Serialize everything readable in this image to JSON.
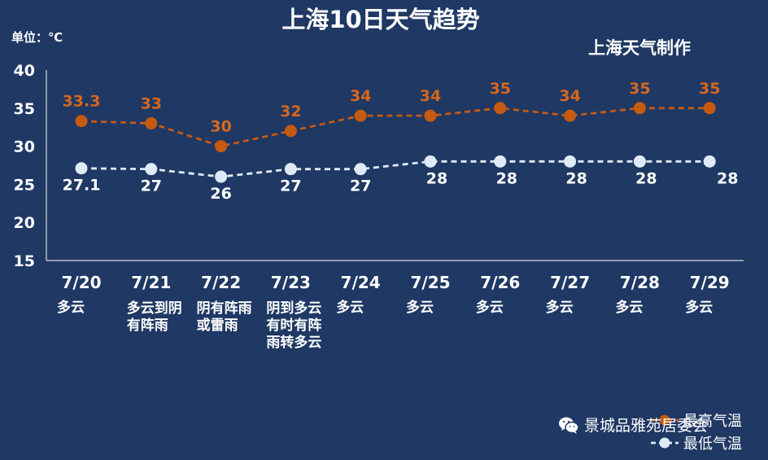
{
  "chart_data": {
    "type": "line",
    "title": "上海10日天气趋势",
    "unit_label": "单位：℃",
    "source_label": "上海天气制作",
    "categories": [
      "7/20",
      "7/21",
      "7/22",
      "7/23",
      "7/24",
      "7/25",
      "7/26",
      "7/27",
      "7/28",
      "7/29"
    ],
    "weather": [
      "多云",
      "多云到阴\n有阵雨",
      "阴有阵雨\n或雷雨",
      "阴到多云\n有时有阵\n雨转多云",
      "多云",
      "多云",
      "多云",
      "多云",
      "多云",
      "多云"
    ],
    "series": [
      {
        "name": "最高气温",
        "color": "#c55a11",
        "label_color": "#d8671c",
        "values": [
          33.3,
          33,
          30,
          32,
          34,
          34,
          35,
          34,
          35,
          35
        ],
        "labels": [
          "33.3",
          "33",
          "30",
          "32",
          "34",
          "34",
          "35",
          "34",
          "35",
          "35"
        ]
      },
      {
        "name": "最低气温",
        "color": "#deebf7",
        "label_color": "#ffffff",
        "values": [
          27.1,
          27,
          26,
          27,
          27,
          28,
          28,
          28,
          28,
          28
        ],
        "labels": [
          "27.1",
          "27",
          "26",
          "27",
          "27",
          "28",
          "28",
          "28",
          "28",
          "28"
        ]
      }
    ],
    "yticks": [
      40,
      35,
      30,
      25,
      20,
      15
    ],
    "ylim": [
      15,
      40
    ],
    "grid": false,
    "legend_position": "bottom-right"
  },
  "watermark": {
    "icon": "wechat-icon",
    "text": "景城品雅苑居委会"
  }
}
